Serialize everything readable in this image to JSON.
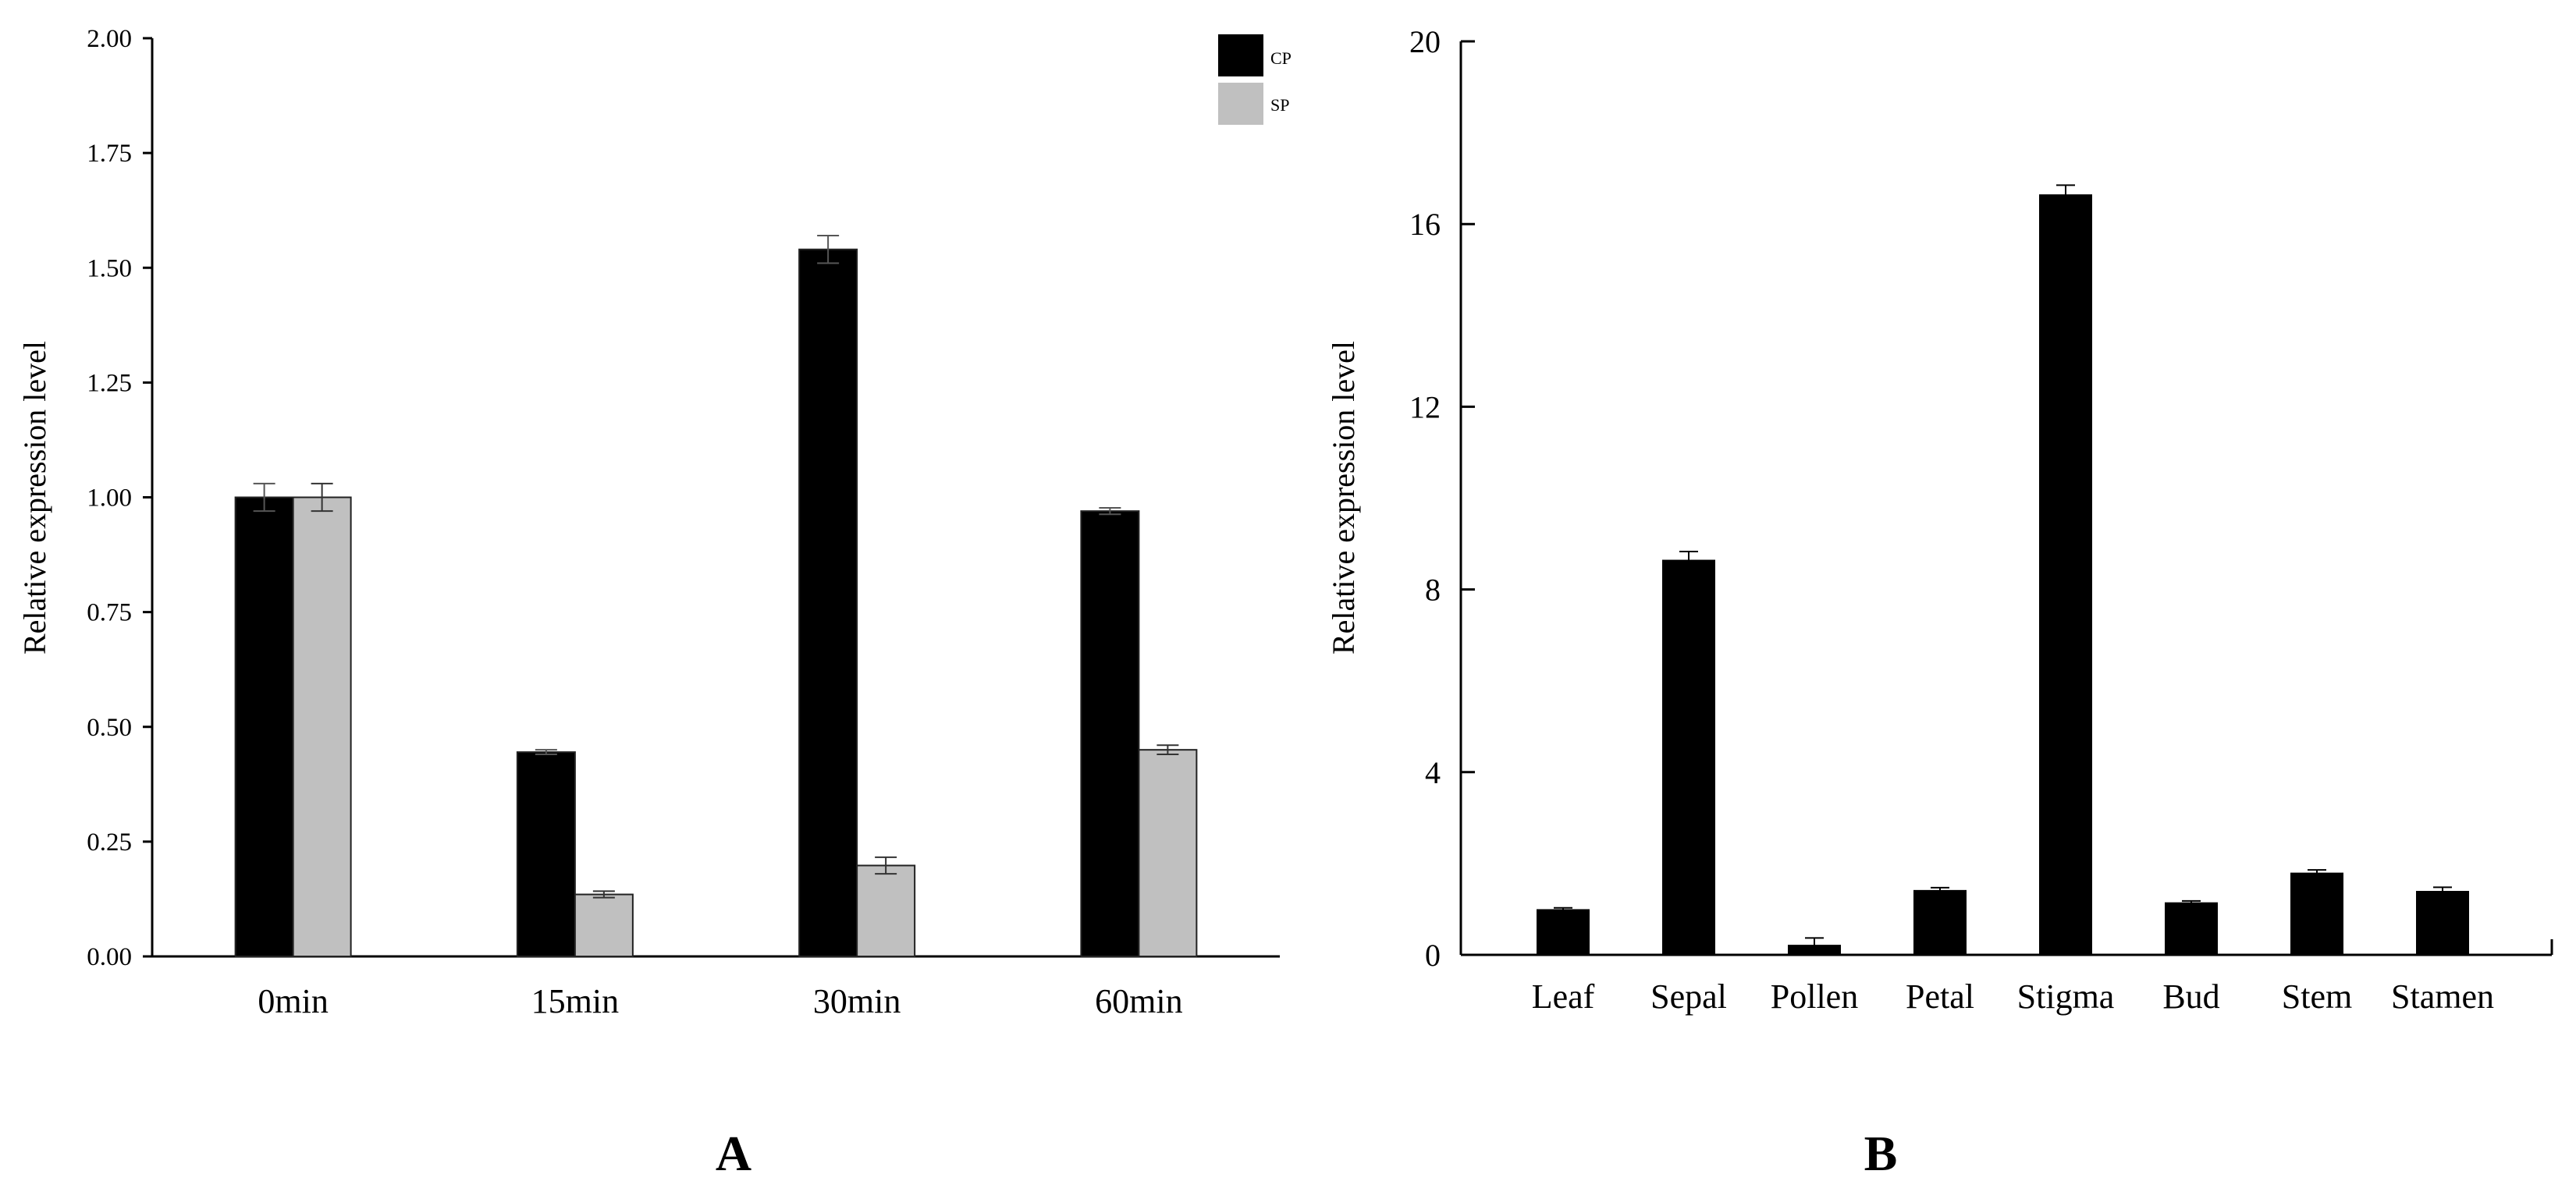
{
  "chart_data": [
    {
      "panel": "A",
      "type": "bar",
      "title": "",
      "xlabel": "",
      "ylabel": "Relative expression level",
      "ylim": [
        0,
        2.0
      ],
      "yticks": [
        "0.00",
        "0.25",
        "0.50",
        "0.75",
        "1.00",
        "1.25",
        "1.50",
        "1.75",
        "2.00"
      ],
      "categories": [
        "0min",
        "15min",
        "30min",
        "60min"
      ],
      "legend": "top-right",
      "series": [
        {
          "name": "CP",
          "color": "#000000",
          "values": [
            1.0,
            0.445,
            1.54,
            0.97
          ],
          "errors": [
            0.03,
            0.005,
            0.03,
            0.007
          ]
        },
        {
          "name": "SP",
          "color": "#c0c0c0",
          "values": [
            1.0,
            0.135,
            0.198,
            0.45
          ],
          "errors": [
            0.03,
            0.007,
            0.018,
            0.01
          ]
        }
      ]
    },
    {
      "panel": "B",
      "type": "bar",
      "title": "",
      "xlabel": "",
      "ylabel": "Relative expression level",
      "ylim": [
        0,
        20
      ],
      "yticks": [
        "0",
        "4",
        "8",
        "12",
        "16",
        "20"
      ],
      "categories": [
        "Leaf",
        "Sepal",
        "Pollen",
        "Petal",
        "Stigma",
        "Bud",
        "Stem",
        "Stamen"
      ],
      "series": [
        {
          "name": "",
          "color": "#000000",
          "values": [
            1.0,
            8.65,
            0.22,
            1.42,
            16.65,
            1.15,
            1.8,
            1.4
          ],
          "errors": [
            0.03,
            0.18,
            0.15,
            0.05,
            0.2,
            0.03,
            0.06,
            0.08
          ]
        }
      ]
    }
  ]
}
